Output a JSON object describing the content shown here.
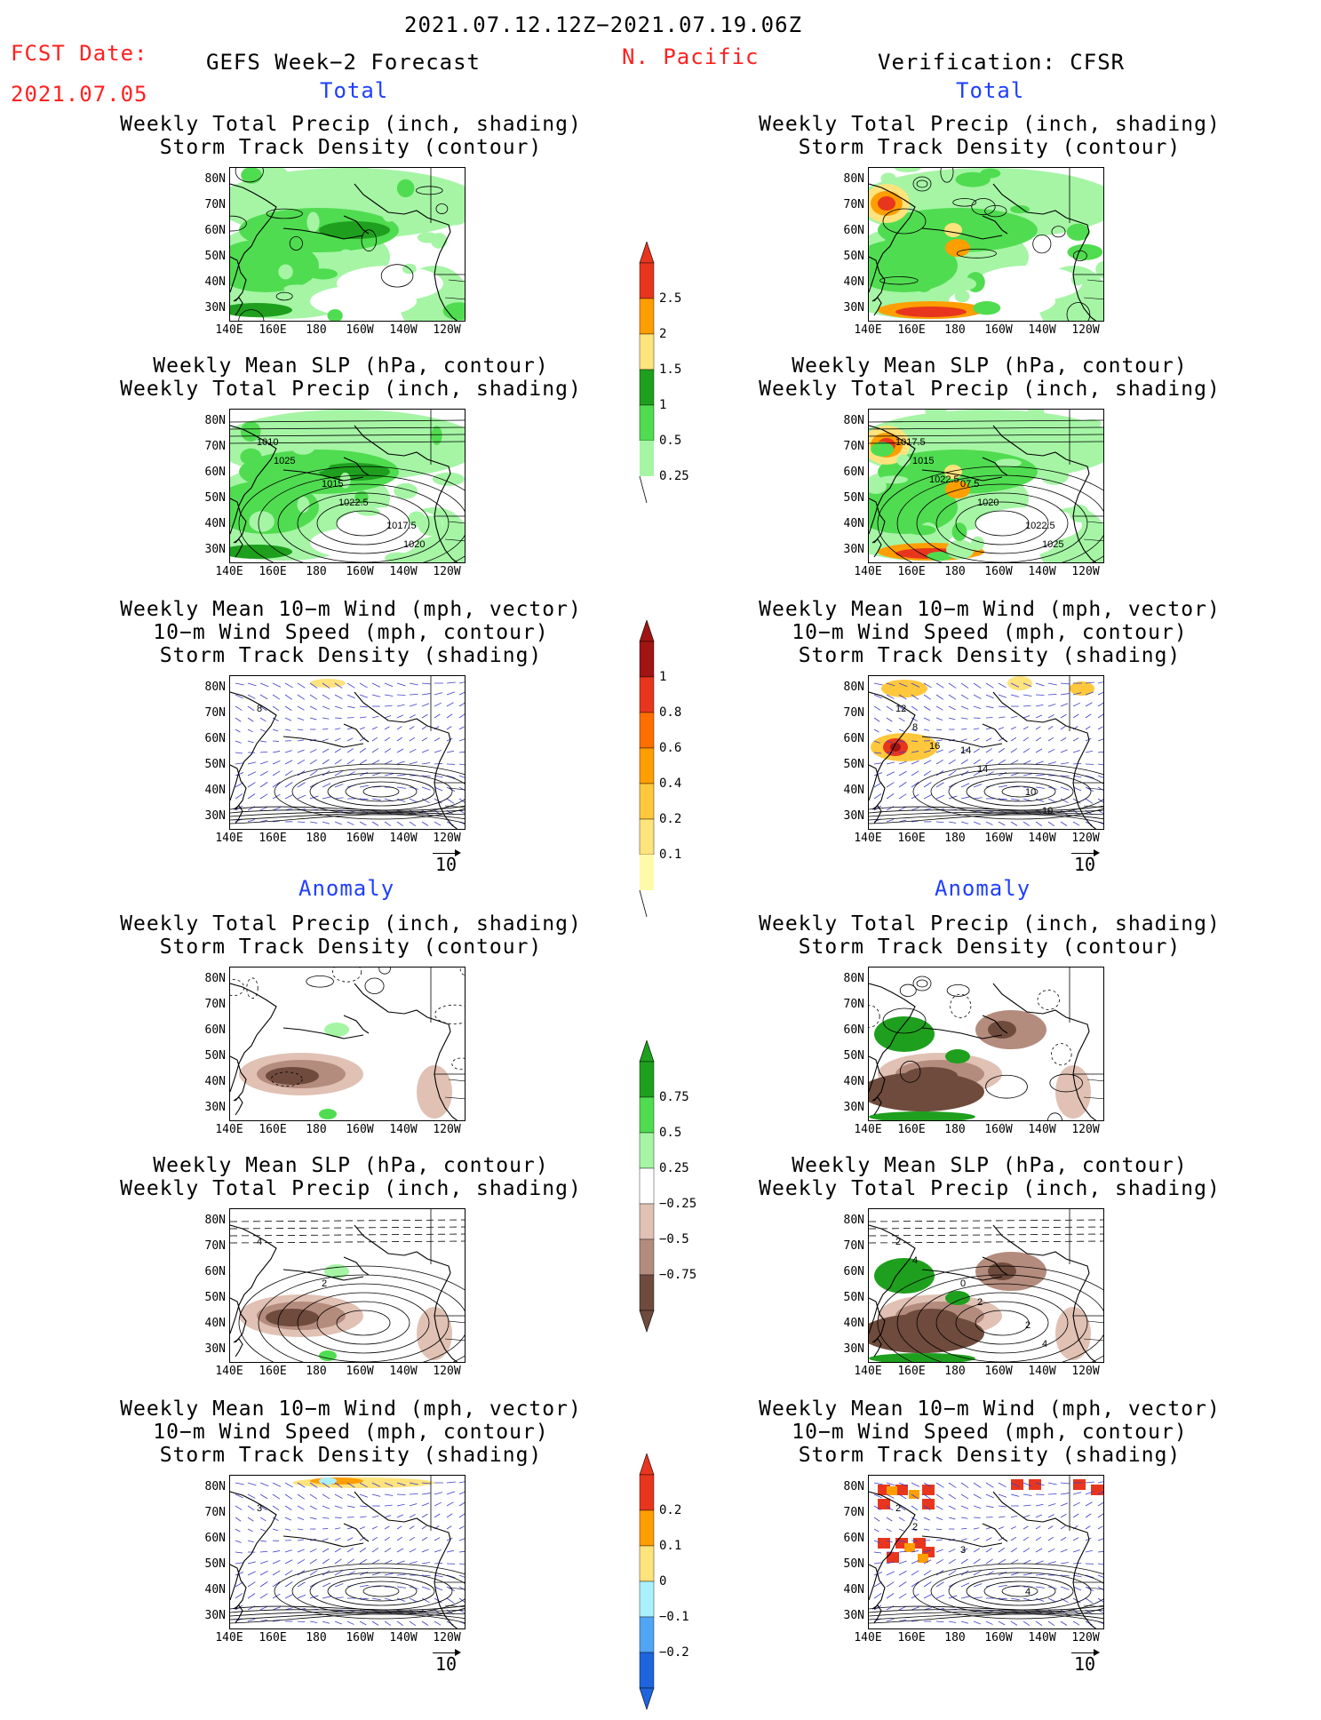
{
  "header": {
    "period": "2021.07.12.12Z−2021.07.19.06Z",
    "fcst_label": "FCST Date:",
    "fcst_date": "2021.07.05",
    "left_title": "GEFS Week−2 Forecast",
    "region": "N. Pacific",
    "right_title": "Verification: CFSR"
  },
  "sections": {
    "total": "Total",
    "anomaly": "Anomaly"
  },
  "panel_titles": {
    "precip_storm": [
      "Weekly Total Precip (inch, shading)",
      "Storm Track Density (contour)"
    ],
    "slp_precip": [
      "Weekly Mean SLP (hPa, contour)",
      "Weekly Total Precip (inch, shading)"
    ],
    "wind": [
      "Weekly Mean 10−m Wind (mph, vector)",
      "10−m Wind Speed (mph, contour)",
      "Storm Track Density (shading)"
    ]
  },
  "axes": {
    "lat_labels": [
      "80N",
      "70N",
      "60N",
      "50N",
      "40N",
      "30N"
    ],
    "lon_labels": [
      "140E",
      "160E",
      "180",
      "160W",
      "140W",
      "120W"
    ]
  },
  "vector_ref": "10",
  "colorbars": {
    "precip_total": {
      "labels": [
        "2.5",
        "2",
        "1.5",
        "1",
        "0.5",
        "0.25"
      ],
      "colors": [
        "#e8361e",
        "#ff9e00",
        "#ffe37c",
        "#1ea01e",
        "#50dc50",
        "#a5f5a5"
      ]
    },
    "storm_total": {
      "labels": [
        "1",
        "0.8",
        "0.6",
        "0.4",
        "0.2",
        "0.1"
      ],
      "colors": [
        "#a01414",
        "#e8361e",
        "#ff6e00",
        "#ff9e00",
        "#ffc83c",
        "#ffe37c",
        "#fffaaa"
      ]
    },
    "precip_anom": {
      "labels": [
        "0.75",
        "0.5",
        "0.25",
        "−0.25",
        "−0.5",
        "−0.75"
      ],
      "colors": [
        "#1ea01e",
        "#50dc50",
        "#a5f5a5",
        "#ffffff",
        "#e0c1b4",
        "#b48c7d",
        "#6e4b3c"
      ]
    },
    "storm_anom": {
      "labels": [
        "0.2",
        "0.1",
        "0",
        "−0.1",
        "−0.2"
      ],
      "colors": [
        "#e8361e",
        "#ff9e00",
        "#ffe37c",
        "#aaf0ff",
        "#50a5f5",
        "#1e64dc"
      ]
    }
  },
  "contour_labels": {
    "fcst_slp_total": [
      "1010",
      "1015",
      "1017.5",
      "1025",
      "1022.5",
      "1020"
    ],
    "cfsr_slp_total": [
      "1017.5",
      "07.5",
      "1022.5",
      "1015",
      "1020",
      "1025",
      "1022.5"
    ],
    "fcst_wind_total": [
      "8"
    ],
    "cfsr_wind_total": [
      "12",
      "14",
      "10",
      "8",
      "14",
      "10",
      "16"
    ],
    "fcst_slp_anom": [
      "4",
      "2"
    ],
    "cfsr_slp_anom": [
      "2",
      "0",
      "2",
      "4",
      "2",
      "4"
    ],
    "fcst_wind_anom": [
      "3"
    ],
    "cfsr_wind_anom": [
      "2",
      "3",
      "4",
      "2"
    ]
  }
}
